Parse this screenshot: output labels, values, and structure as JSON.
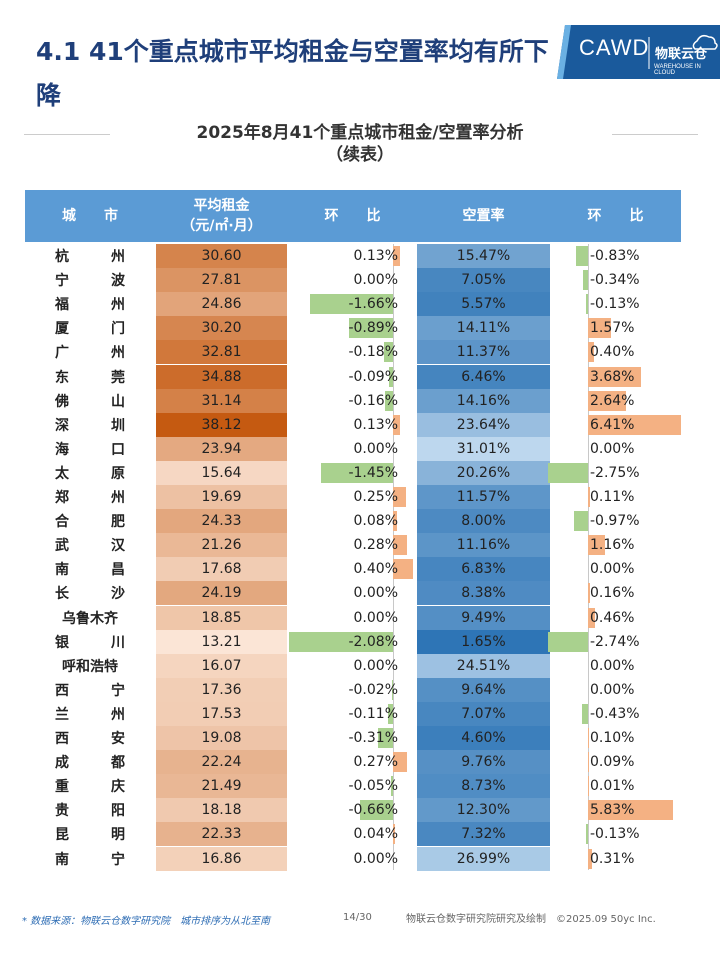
{
  "header": {
    "title": "4.1 41个重点城市平均租金与空置率均有所下降",
    "subtitle_line1": "2025年8月41个重点城市租金/空置率分析",
    "subtitle_line2": "（续表）",
    "logo_left": "CAWD",
    "logo_right_cn": "物联云仓",
    "logo_right_en": "WAREHOUSE IN CLOUD"
  },
  "table": {
    "headers": {
      "city": "城　　市",
      "rent_line1": "平均租金",
      "rent_line2": "（元/㎡·月）",
      "mom_rent": "环　　比",
      "vacancy": "空置率",
      "mom_vacancy": "环　　比"
    },
    "rows": [
      {
        "city": "杭州",
        "rent": "30.60",
        "rent_mom": "0.13%",
        "vacancy": "15.47%",
        "vacancy_mom": "-0.83%"
      },
      {
        "city": "宁波",
        "rent": "27.81",
        "rent_mom": "0.00%",
        "vacancy": "7.05%",
        "vacancy_mom": "-0.34%"
      },
      {
        "city": "福州",
        "rent": "24.86",
        "rent_mom": "-1.66%",
        "vacancy": "5.57%",
        "vacancy_mom": "-0.13%"
      },
      {
        "city": "厦门",
        "rent": "30.20",
        "rent_mom": "-0.89%",
        "vacancy": "14.11%",
        "vacancy_mom": "1.57%"
      },
      {
        "city": "广州",
        "rent": "32.81",
        "rent_mom": "-0.18%",
        "vacancy": "11.37%",
        "vacancy_mom": "0.40%"
      },
      {
        "city": "东莞",
        "rent": "34.88",
        "rent_mom": "-0.09%",
        "vacancy": "6.46%",
        "vacancy_mom": "3.68%"
      },
      {
        "city": "佛山",
        "rent": "31.14",
        "rent_mom": "-0.16%",
        "vacancy": "14.16%",
        "vacancy_mom": "2.64%"
      },
      {
        "city": "深圳",
        "rent": "38.12",
        "rent_mom": "0.13%",
        "vacancy": "23.64%",
        "vacancy_mom": "6.41%"
      },
      {
        "city": "海口",
        "rent": "23.94",
        "rent_mom": "0.00%",
        "vacancy": "31.01%",
        "vacancy_mom": "0.00%"
      },
      {
        "city": "太原",
        "rent": "15.64",
        "rent_mom": "-1.45%",
        "vacancy": "20.26%",
        "vacancy_mom": "-2.75%"
      },
      {
        "city": "郑州",
        "rent": "19.69",
        "rent_mom": "0.25%",
        "vacancy": "11.57%",
        "vacancy_mom": "0.11%"
      },
      {
        "city": "合肥",
        "rent": "24.33",
        "rent_mom": "0.08%",
        "vacancy": "8.00%",
        "vacancy_mom": "-0.97%"
      },
      {
        "city": "武汉",
        "rent": "21.26",
        "rent_mom": "0.28%",
        "vacancy": "11.16%",
        "vacancy_mom": "1.16%"
      },
      {
        "city": "南昌",
        "rent": "17.68",
        "rent_mom": "0.40%",
        "vacancy": "6.83%",
        "vacancy_mom": "0.00%"
      },
      {
        "city": "长沙",
        "rent": "24.19",
        "rent_mom": "0.00%",
        "vacancy": "8.38%",
        "vacancy_mom": "0.16%"
      },
      {
        "city": "乌鲁木齐",
        "rent": "18.85",
        "rent_mom": "0.00%",
        "vacancy": "9.49%",
        "vacancy_mom": "0.46%"
      },
      {
        "city": "银川",
        "rent": "13.21",
        "rent_mom": "-2.08%",
        "vacancy": "1.65%",
        "vacancy_mom": "-2.74%"
      },
      {
        "city": "呼和浩特",
        "rent": "16.07",
        "rent_mom": "0.00%",
        "vacancy": "24.51%",
        "vacancy_mom": "0.00%"
      },
      {
        "city": "西宁",
        "rent": "17.36",
        "rent_mom": "-0.02%",
        "vacancy": "9.64%",
        "vacancy_mom": "0.00%"
      },
      {
        "city": "兰州",
        "rent": "17.53",
        "rent_mom": "-0.11%",
        "vacancy": "7.07%",
        "vacancy_mom": "-0.43%"
      },
      {
        "city": "西安",
        "rent": "19.08",
        "rent_mom": "-0.31%",
        "vacancy": "4.60%",
        "vacancy_mom": "0.10%"
      },
      {
        "city": "成都",
        "rent": "22.24",
        "rent_mom": "0.27%",
        "vacancy": "9.76%",
        "vacancy_mom": "0.09%"
      },
      {
        "city": "重庆",
        "rent": "21.49",
        "rent_mom": "-0.05%",
        "vacancy": "8.73%",
        "vacancy_mom": "0.01%"
      },
      {
        "city": "贵阳",
        "rent": "18.18",
        "rent_mom": "-0.66%",
        "vacancy": "12.30%",
        "vacancy_mom": "5.83%"
      },
      {
        "city": "昆明",
        "rent": "22.33",
        "rent_mom": "0.04%",
        "vacancy": "7.32%",
        "vacancy_mom": "-0.13%"
      },
      {
        "city": "南宁",
        "rent": "16.86",
        "rent_mom": "0.00%",
        "vacancy": "26.99%",
        "vacancy_mom": "0.31%"
      }
    ]
  },
  "footer": {
    "source": "* 数据来源：物联云仓数字研究院　城市排序为从北至南",
    "page": "14/30",
    "credit": "物联云仓数字研究院研究及绘制　©2025.09 50yc Inc."
  },
  "colors": {
    "title": "#1f3f7a",
    "header_bg": "#5b9bd5",
    "negative_bar": "#a9d18e",
    "positive_bar": "#f4b183",
    "rent_scale_high": "#c55a11",
    "rent_scale_low": "#fbe5d6",
    "vacancy_scale_low": "#2e75b6",
    "vacancy_scale_high": "#bdd7ee"
  }
}
